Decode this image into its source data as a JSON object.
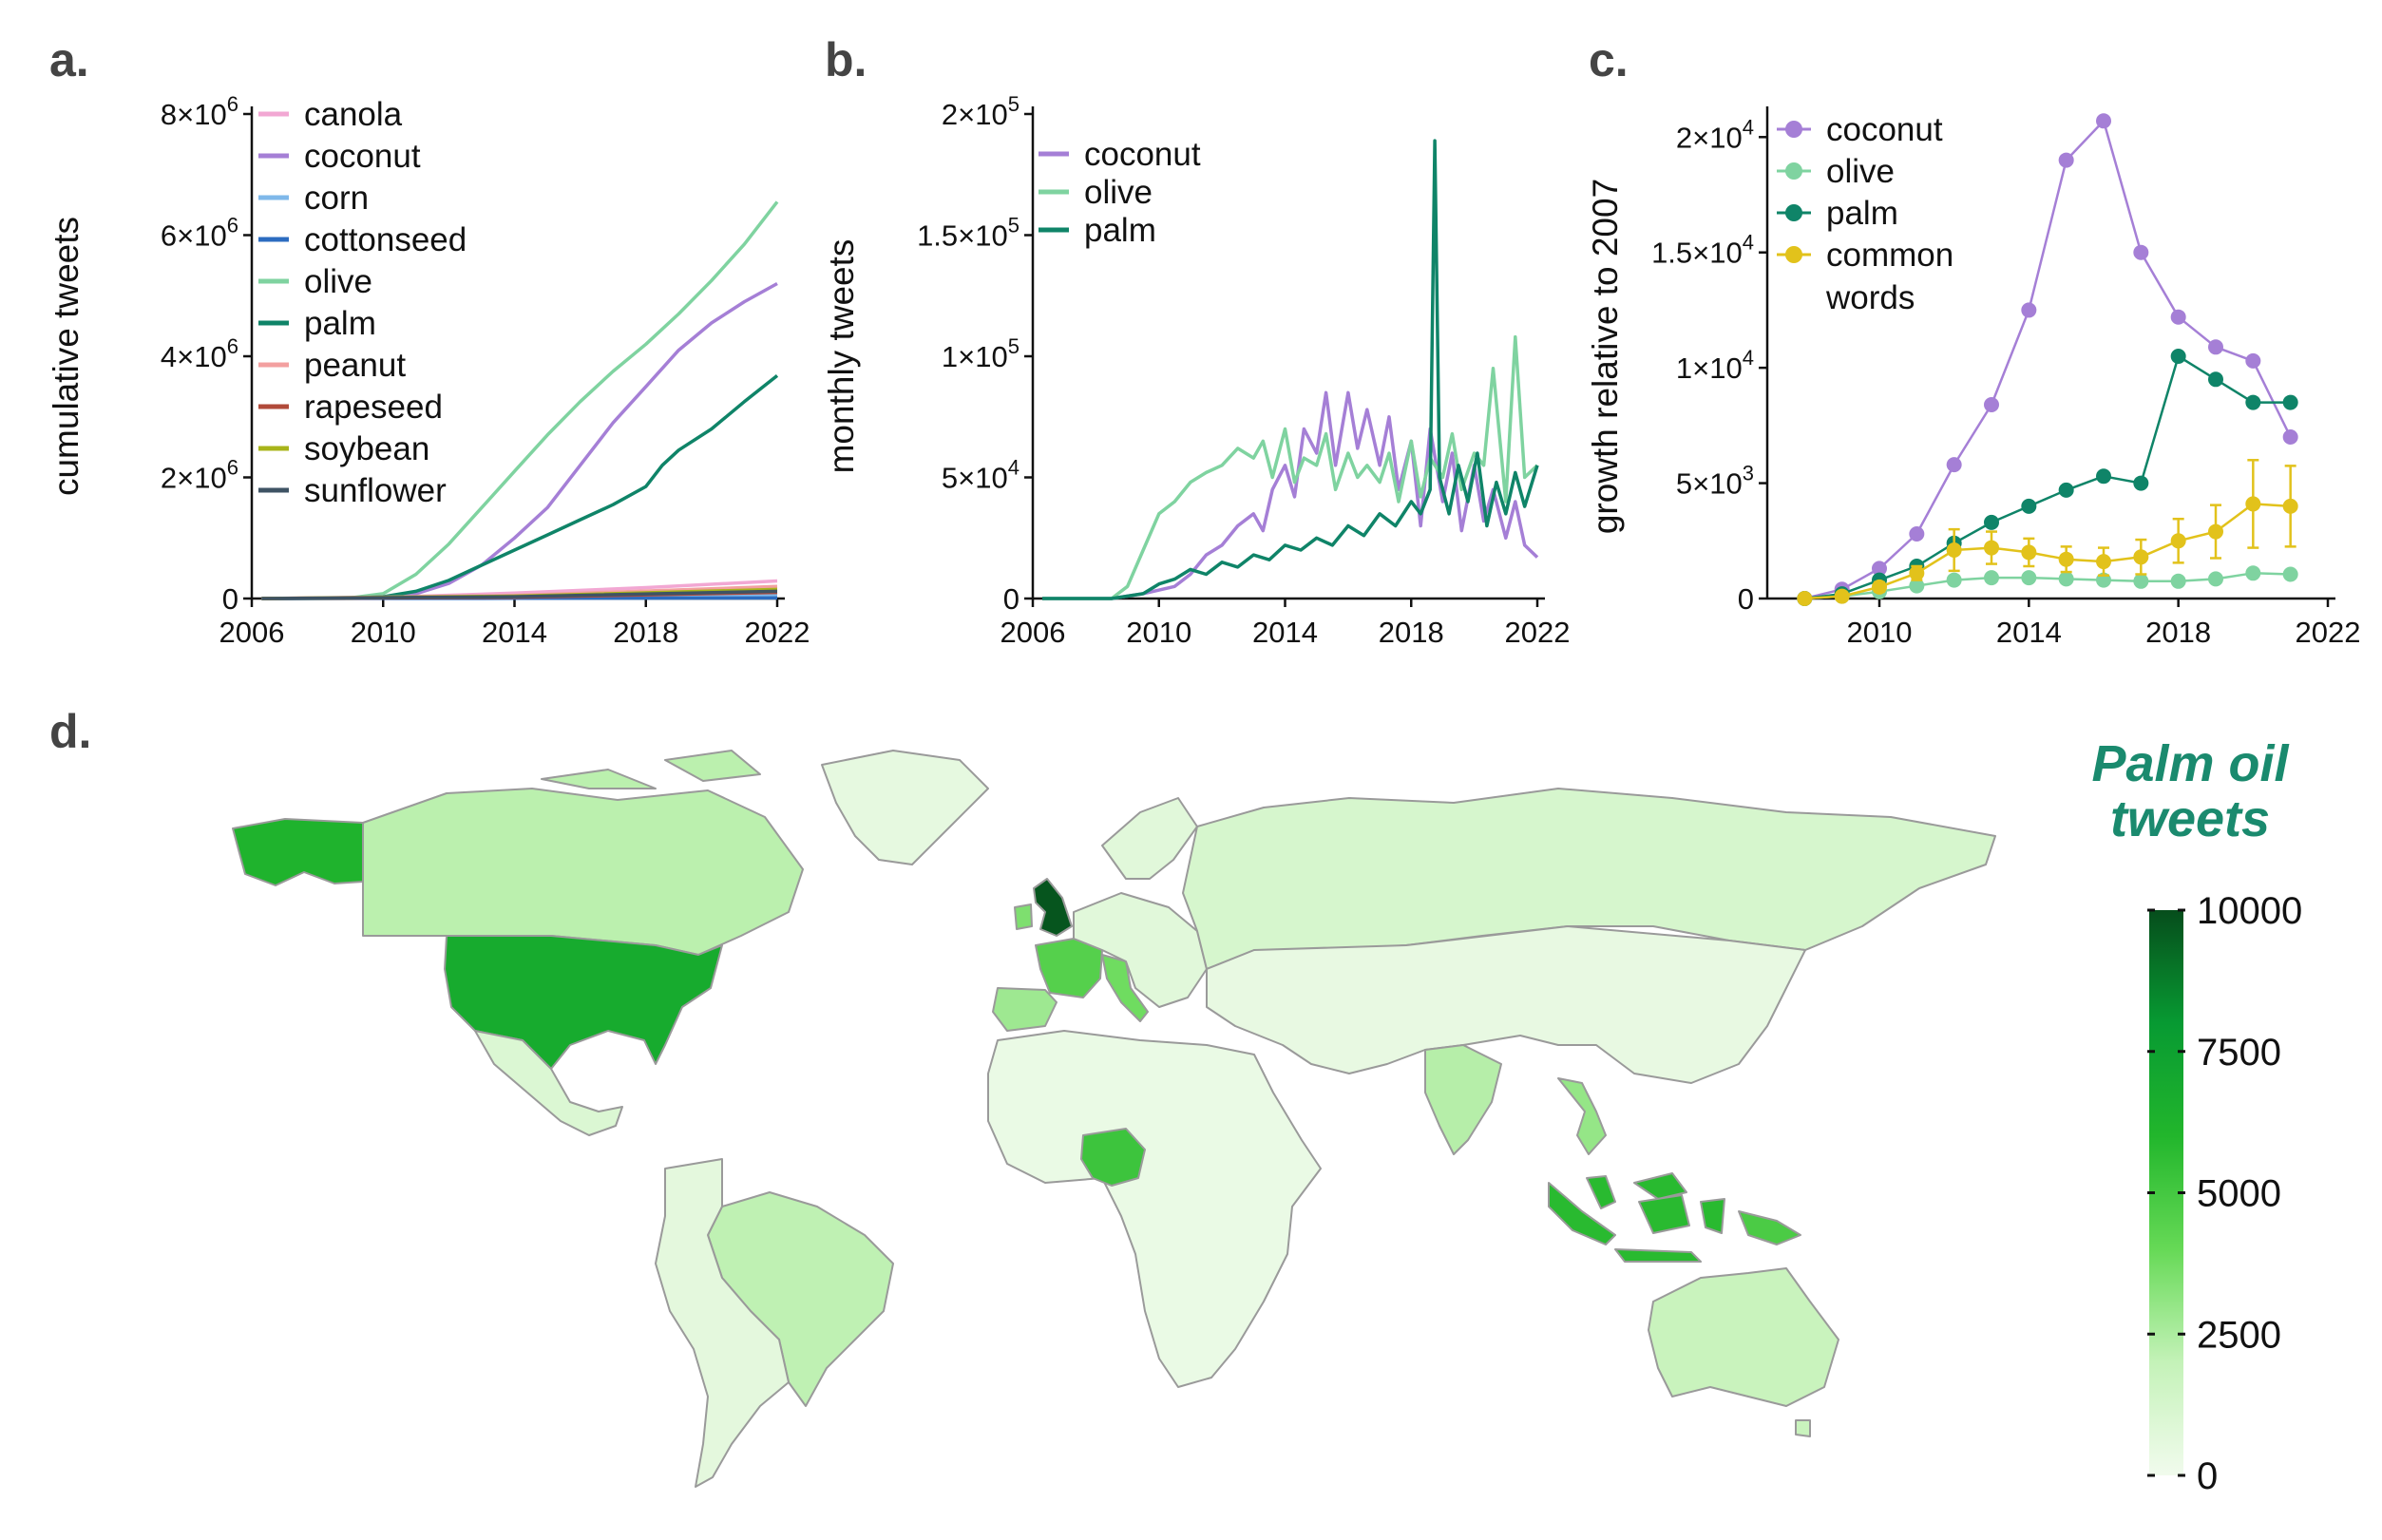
{
  "panel_labels": {
    "a": "a.",
    "b": "b.",
    "c": "c.",
    "d": "d."
  },
  "colors": {
    "canola": "#f2a7d3",
    "coconut": "#a57fd6",
    "corn": "#7fb8ea",
    "cottonseed": "#2c6cc0",
    "olive": "#7fd3a0",
    "palm": "#0f8468",
    "peanut": "#f3a0a0",
    "rapeseed": "#b14a3a",
    "soybean": "#a8b41a",
    "sunflower": "#3e5364",
    "common": "#e2c21b"
  },
  "chart_data": [
    {
      "id": "a",
      "type": "line",
      "ylabel": "cumulative tweets",
      "xlabel": "",
      "xlim": [
        2006,
        2022
      ],
      "ylim": [
        0,
        8000000
      ],
      "x_ticks": [
        "2006",
        "2010",
        "2014",
        "2018",
        "2022"
      ],
      "y_ticks": [
        {
          "value": 0,
          "base": "0",
          "exp": ""
        },
        {
          "value": 2000000,
          "base": "2×10",
          "exp": "6"
        },
        {
          "value": 4000000,
          "base": "4×10",
          "exp": "6"
        },
        {
          "value": 6000000,
          "base": "6×10",
          "exp": "6"
        },
        {
          "value": 8000000,
          "base": "8×10",
          "exp": "6"
        }
      ],
      "legend_position": "top-left",
      "series": [
        {
          "name": "canola",
          "color_key": "canola",
          "x": [
            2006.3,
            2010,
            2014,
            2018,
            2022
          ],
          "y": [
            0,
            20000,
            90000,
            180000,
            290000
          ]
        },
        {
          "name": "coconut",
          "color_key": "coconut",
          "x": [
            2006.3,
            2009,
            2010,
            2011,
            2012,
            2013,
            2014,
            2015,
            2016,
            2017,
            2018,
            2019,
            2020,
            2021,
            2022
          ],
          "y": [
            0,
            5000,
            20000,
            80000,
            250000,
            550000,
            1000000,
            1500000,
            2200000,
            2900000,
            3500000,
            4100000,
            4550000,
            4900000,
            5200000
          ]
        },
        {
          "name": "corn",
          "color_key": "corn",
          "x": [
            2006.3,
            2014,
            2022
          ],
          "y": [
            0,
            20000,
            60000
          ]
        },
        {
          "name": "cottonseed",
          "color_key": "cottonseed",
          "x": [
            2006.3,
            2014,
            2022
          ],
          "y": [
            0,
            3000,
            10000
          ]
        },
        {
          "name": "olive",
          "color_key": "olive",
          "x": [
            2006.3,
            2009,
            2010,
            2011,
            2012,
            2013,
            2014,
            2015,
            2016,
            2017,
            2018,
            2019,
            2020,
            2021,
            2022
          ],
          "y": [
            0,
            10000,
            80000,
            400000,
            900000,
            1500000,
            2100000,
            2700000,
            3250000,
            3750000,
            4200000,
            4700000,
            5250000,
            5850000,
            6550000
          ]
        },
        {
          "name": "palm",
          "color_key": "palm",
          "x": [
            2006.3,
            2009,
            2010,
            2011,
            2012,
            2013,
            2014,
            2015,
            2016,
            2017,
            2018,
            2018.5,
            2019,
            2020,
            2021,
            2022
          ],
          "y": [
            0,
            5000,
            30000,
            120000,
            300000,
            550000,
            800000,
            1050000,
            1300000,
            1550000,
            1850000,
            2200000,
            2450000,
            2800000,
            3250000,
            3680000
          ]
        },
        {
          "name": "peanut",
          "color_key": "peanut",
          "x": [
            2006.3,
            2014,
            2022
          ],
          "y": [
            0,
            50000,
            200000
          ]
        },
        {
          "name": "rapeseed",
          "color_key": "rapeseed",
          "x": [
            2006.3,
            2014,
            2022
          ],
          "y": [
            0,
            20000,
            100000
          ]
        },
        {
          "name": "soybean",
          "color_key": "soybean",
          "x": [
            2006.3,
            2014,
            2022
          ],
          "y": [
            0,
            40000,
            150000
          ]
        },
        {
          "name": "sunflower",
          "color_key": "sunflower",
          "x": [
            2006.3,
            2014,
            2022
          ],
          "y": [
            0,
            30000,
            120000
          ]
        }
      ]
    },
    {
      "id": "b",
      "type": "line",
      "ylabel": "monthly tweets",
      "xlabel": "",
      "xlim": [
        2006,
        2022
      ],
      "ylim": [
        0,
        200000
      ],
      "x_ticks": [
        "2006",
        "2010",
        "2014",
        "2018",
        "2022"
      ],
      "y_ticks": [
        {
          "value": 0,
          "base": "0",
          "exp": ""
        },
        {
          "value": 50000,
          "base": "5×10",
          "exp": "4"
        },
        {
          "value": 100000,
          "base": "1×10",
          "exp": "5"
        },
        {
          "value": 150000,
          "base": "1.5×10",
          "exp": "5"
        },
        {
          "value": 200000,
          "base": "2×10",
          "exp": "5"
        }
      ],
      "legend_position": "top-left",
      "series": [
        {
          "name": "coconut",
          "color_key": "coconut",
          "x": [
            2006.3,
            2008.5,
            2009.5,
            2010.5,
            2011,
            2011.5,
            2012,
            2012.5,
            2013,
            2013.3,
            2013.6,
            2014,
            2014.3,
            2014.6,
            2015,
            2015.3,
            2015.6,
            2016,
            2016.3,
            2016.6,
            2017,
            2017.3,
            2017.6,
            2018,
            2018.3,
            2018.6,
            2019,
            2019.3,
            2019.6,
            2020,
            2020.3,
            2020.6,
            2021,
            2021.3,
            2021.6,
            2022
          ],
          "y": [
            0,
            0,
            2000,
            5000,
            10000,
            18000,
            22000,
            30000,
            35000,
            28000,
            45000,
            55000,
            42000,
            70000,
            60000,
            85000,
            55000,
            85000,
            62000,
            78000,
            55000,
            75000,
            45000,
            65000,
            30000,
            70000,
            40000,
            60000,
            28000,
            55000,
            32000,
            45000,
            25000,
            40000,
            22000,
            17000
          ]
        },
        {
          "name": "olive",
          "color_key": "olive",
          "x": [
            2006.3,
            2008.5,
            2009,
            2009.5,
            2010,
            2010.5,
            2011,
            2011.5,
            2012,
            2012.5,
            2013,
            2013.3,
            2013.6,
            2014,
            2014.3,
            2014.6,
            2015,
            2015.3,
            2015.6,
            2016,
            2016.3,
            2016.6,
            2017,
            2017.3,
            2017.6,
            2018,
            2018.3,
            2018.6,
            2019,
            2019.3,
            2019.6,
            2020,
            2020.3,
            2020.6,
            2021,
            2021.3,
            2021.6,
            2022
          ],
          "y": [
            0,
            0,
            5000,
            20000,
            35000,
            40000,
            48000,
            52000,
            55000,
            62000,
            58000,
            65000,
            50000,
            70000,
            48000,
            58000,
            55000,
            68000,
            45000,
            60000,
            50000,
            55000,
            48000,
            60000,
            40000,
            65000,
            42000,
            58000,
            50000,
            68000,
            45000,
            60000,
            55000,
            95000,
            40000,
            108000,
            50000,
            55000
          ]
        },
        {
          "name": "palm",
          "color_key": "palm",
          "x": [
            2006.3,
            2008.5,
            2009.5,
            2010,
            2010.5,
            2011,
            2011.5,
            2012,
            2012.5,
            2013,
            2013.5,
            2014,
            2014.5,
            2015,
            2015.5,
            2016,
            2016.5,
            2017,
            2017.5,
            2018,
            2018.3,
            2018.6,
            2018.75,
            2018.9,
            2019.2,
            2019.5,
            2019.8,
            2020.1,
            2020.4,
            2020.7,
            2021,
            2021.3,
            2021.6,
            2022
          ],
          "y": [
            0,
            0,
            2000,
            6000,
            8000,
            12000,
            10000,
            15000,
            13000,
            18000,
            16000,
            22000,
            20000,
            25000,
            22000,
            30000,
            26000,
            35000,
            30000,
            40000,
            35000,
            45000,
            189000,
            50000,
            35000,
            55000,
            40000,
            60000,
            30000,
            48000,
            35000,
            52000,
            38000,
            55000
          ]
        }
      ]
    },
    {
      "id": "c",
      "type": "line",
      "ylabel": "growth relative to 2007",
      "xlabel": "",
      "xlim": [
        2007,
        2022
      ],
      "ylim": [
        0,
        21000
      ],
      "x_ticks": [
        "2010",
        "2014",
        "2018",
        "2022"
      ],
      "y_ticks": [
        {
          "value": 0,
          "base": "0",
          "exp": ""
        },
        {
          "value": 5000,
          "base": "5×10",
          "exp": "3"
        },
        {
          "value": 10000,
          "base": "1×10",
          "exp": "4"
        },
        {
          "value": 15000,
          "base": "1.5×10",
          "exp": "4"
        },
        {
          "value": 20000,
          "base": "2×10",
          "exp": "4"
        }
      ],
      "legend_position": "top-left",
      "series": [
        {
          "name": "coconut",
          "color_key": "coconut",
          "x": [
            2008,
            2009,
            2010,
            2011,
            2012,
            2013,
            2014,
            2015,
            2016,
            2017,
            2018,
            2019,
            2020,
            2021
          ],
          "y": [
            0,
            400,
            1300,
            2800,
            5800,
            8400,
            12500,
            19000,
            20700,
            15000,
            12200,
            10900,
            10300,
            7000
          ]
        },
        {
          "name": "olive",
          "color_key": "olive",
          "x": [
            2008,
            2009,
            2010,
            2011,
            2012,
            2013,
            2014,
            2015,
            2016,
            2017,
            2018,
            2019,
            2020,
            2021
          ],
          "y": [
            0,
            100,
            300,
            550,
            800,
            900,
            900,
            850,
            800,
            750,
            750,
            850,
            1100,
            1050
          ]
        },
        {
          "name": "palm",
          "color_key": "palm",
          "x": [
            2008,
            2009,
            2010,
            2011,
            2012,
            2013,
            2014,
            2015,
            2016,
            2017,
            2018,
            2019,
            2020,
            2021
          ],
          "y": [
            0,
            200,
            800,
            1400,
            2400,
            3300,
            4000,
            4700,
            5300,
            5000,
            10500,
            9500,
            8500,
            8500
          ]
        },
        {
          "name": "common words",
          "color_key": "common",
          "x": [
            2008,
            2009,
            2010,
            2011,
            2012,
            2013,
            2014,
            2015,
            2016,
            2017,
            2018,
            2019,
            2020,
            2021
          ],
          "y": [
            0,
            100,
            500,
            1100,
            2100,
            2200,
            2000,
            1700,
            1600,
            1800,
            2500,
            2900,
            4100,
            4000
          ],
          "err": [
            0,
            100,
            200,
            300,
            900,
            700,
            600,
            550,
            600,
            750,
            950,
            1150,
            1900,
            1750
          ]
        }
      ]
    },
    {
      "id": "d",
      "type": "heatmap",
      "title": [
        "Palm oil",
        "tweets"
      ],
      "colorbar": {
        "min": 0,
        "max": 10000,
        "ticks": [
          "0",
          "2500",
          "5000",
          "7500",
          "10000"
        ],
        "low_color": "#f1fbed",
        "high_color": "#064d1c"
      },
      "regions": [
        {
          "name": "Alaska",
          "value": 6200
        },
        {
          "name": "Canada",
          "value": 2200
        },
        {
          "name": "United States",
          "value": 6800
        },
        {
          "name": "Mexico",
          "value": 1000
        },
        {
          "name": "Greenland",
          "value": 500
        },
        {
          "name": "Brazil",
          "value": 2100
        },
        {
          "name": "South America (other)",
          "value": 600
        },
        {
          "name": "United Kingdom",
          "value": 9800
        },
        {
          "name": "Ireland",
          "value": 3500
        },
        {
          "name": "France",
          "value": 4500
        },
        {
          "name": "Spain",
          "value": 2800
        },
        {
          "name": "Italy",
          "value": 3800
        },
        {
          "name": "Europe (other)",
          "value": 700
        },
        {
          "name": "Russia",
          "value": 1200
        },
        {
          "name": "Asia (other)",
          "value": 400
        },
        {
          "name": "India",
          "value": 2300
        },
        {
          "name": "Vietnam",
          "value": 3000
        },
        {
          "name": "Africa (other)",
          "value": 300
        },
        {
          "name": "Nigeria",
          "value": 5200
        },
        {
          "name": "Malaysia",
          "value": 5800
        },
        {
          "name": "Indonesia",
          "value": 5800
        },
        {
          "name": "Papua New Guinea",
          "value": 4800
        },
        {
          "name": "Australia",
          "value": 1800
        }
      ]
    }
  ]
}
